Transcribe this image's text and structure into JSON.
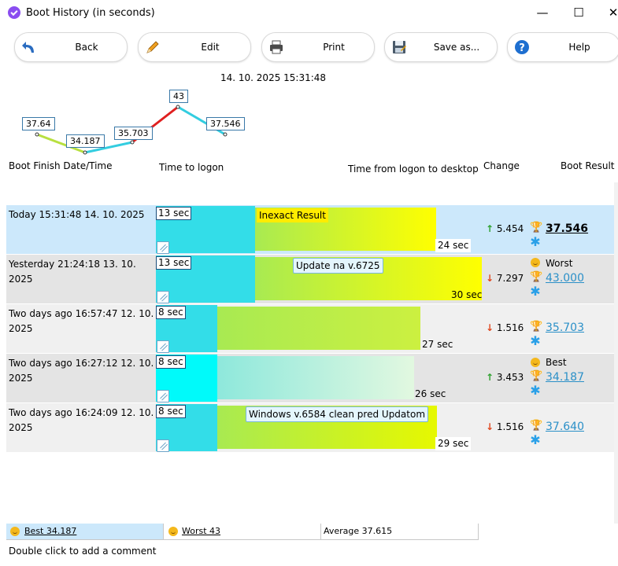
{
  "window": {
    "title": "Boot History (in seconds)",
    "minimize": "—",
    "maximize": "☐",
    "close": "✕"
  },
  "toolbar": {
    "back": "Back",
    "edit": "Edit",
    "print": "Print",
    "save": "Save as...",
    "help": "Help"
  },
  "datestamp": "14. 10. 2025 15:31:48",
  "sparkline": {
    "values": [
      37.64,
      34.187,
      35.703,
      43,
      37.546
    ],
    "labels": [
      "37.64",
      "34.187",
      "35.703",
      "43",
      "37.546"
    ]
  },
  "columns": {
    "date": "Boot Finish Date/Time",
    "logon": "Time to logon",
    "desktop": "Time from logon to desktop",
    "change": "Change",
    "result": "Boot Result"
  },
  "rows": [
    {
      "date": "Today  15:31:48 14. 10. 2025",
      "logon": "13 sec",
      "total": "24 sec",
      "comment": "Inexact Result",
      "change": "5.454",
      "arrow": "↑",
      "result": "37.546",
      "tag": ""
    },
    {
      "date": "Yesterday  21:24:18 13. 10. 2025",
      "logon": "13 sec",
      "total": "30 sec",
      "comment": "Update na v.6725",
      "change": "7.297",
      "arrow": "↓",
      "result": "43.000",
      "tag": "Worst"
    },
    {
      "date": "Two days ago  16:57:47 12. 10. 2025",
      "logon": "8 sec",
      "total": "27 sec",
      "comment": "",
      "change": "1.516",
      "arrow": "↓",
      "result": "35.703",
      "tag": ""
    },
    {
      "date": "Two days ago  16:27:12 12. 10. 2025",
      "logon": "8 sec",
      "total": "26 sec",
      "comment": "",
      "change": "3.453",
      "arrow": "↑",
      "result": "34.187",
      "tag": "Best"
    },
    {
      "date": "Two days ago  16:24:09 12. 10. 2025",
      "logon": "8 sec",
      "total": "29 sec",
      "comment": "Windows v.6584 clean pred Updatom",
      "change": "1.516",
      "arrow": "↓",
      "result": "37.640",
      "tag": ""
    }
  ],
  "summary": {
    "best": "Best 34.187",
    "worst": "Worst 43",
    "average": "Average 37.615"
  },
  "status": "Double click to add a comment",
  "colors": {
    "logon_bar": "#33dde8",
    "current_row": "#cce8fb",
    "alt_row": "#e4e4e4",
    "accent": "#2b90c8"
  }
}
